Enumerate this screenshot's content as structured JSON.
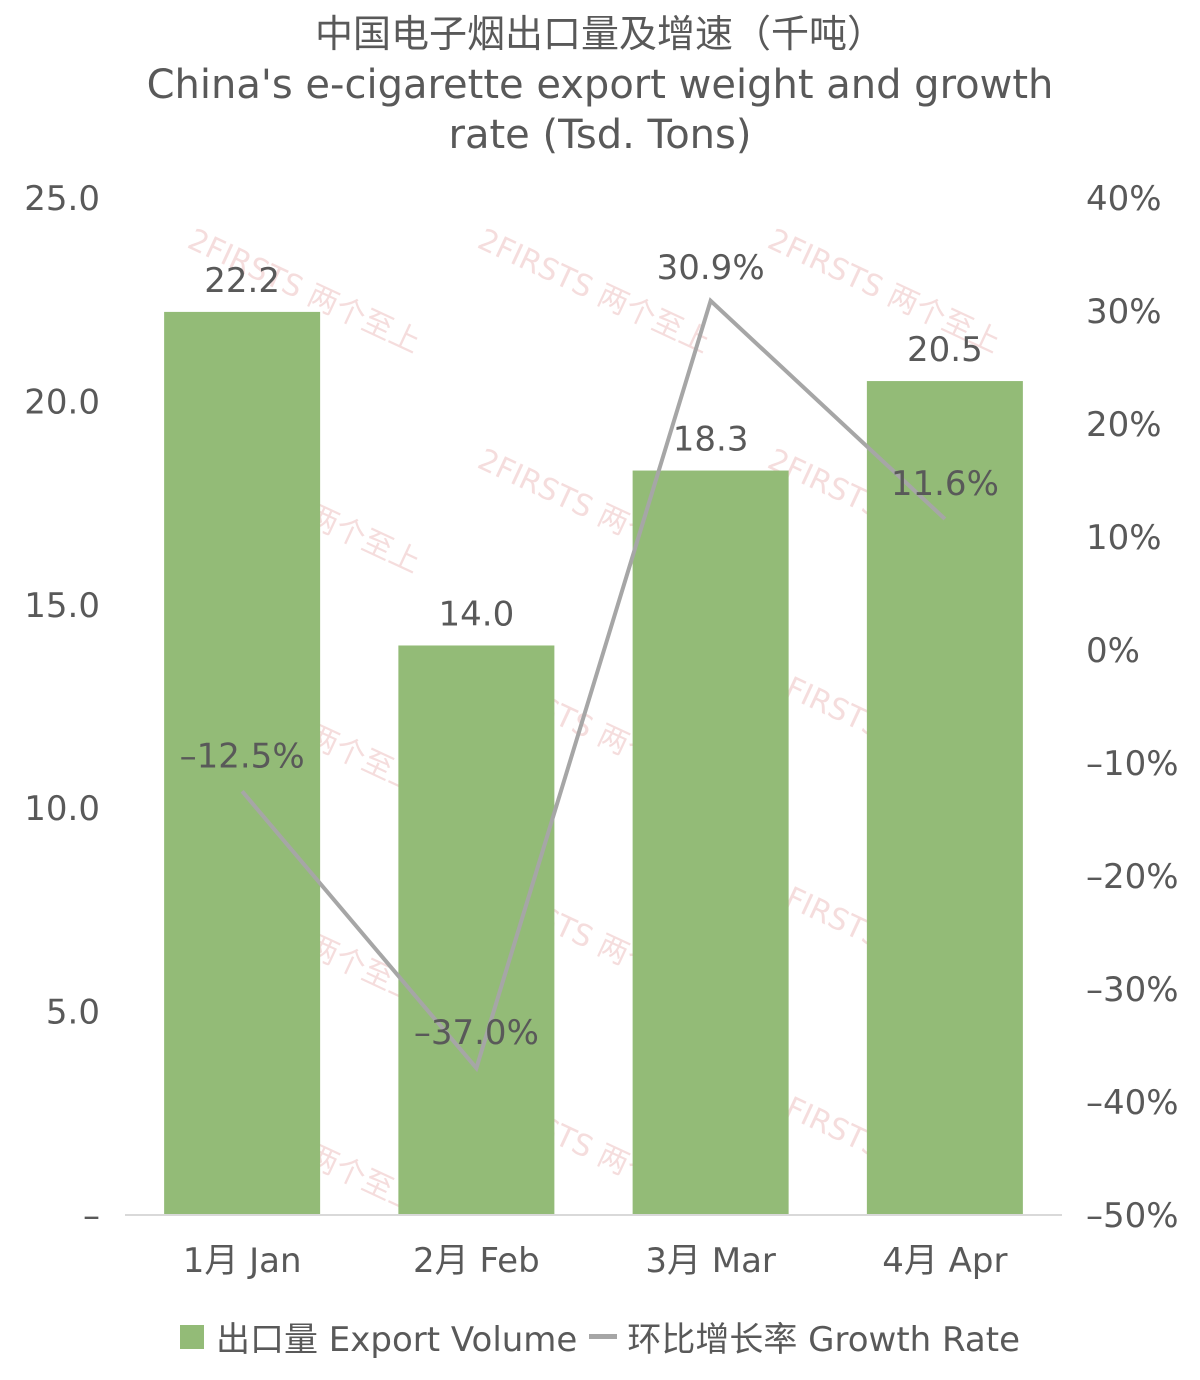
{
  "title": {
    "zh": "中国电子烟出口量及增速（千吨）",
    "en_line1": "China's e-cigarette export weight and growth",
    "en_line2": "rate (Tsd. Tons)"
  },
  "legend": {
    "bar_label": "出口量 Export Volume",
    "line_label": "环比增长率 Growth Rate"
  },
  "colors": {
    "bar": "#93BB77",
    "line": "#A6A6A6",
    "text": "#595959",
    "axis": "#D9D9D9",
    "watermark": "#E8B4B4"
  },
  "watermark_text": "2FIRSTS 两个至上",
  "chart_data": {
    "type": "bar",
    "categories": [
      "1月 Jan",
      "2月 Feb",
      "3月 Mar",
      "4月 Apr"
    ],
    "series": [
      {
        "name": "出口量 Export Volume",
        "type": "bar",
        "axis": "left",
        "values": [
          22.2,
          14.0,
          18.3,
          20.5
        ],
        "labels": [
          "22.2",
          "14.0",
          "18.3",
          "20.5"
        ]
      },
      {
        "name": "环比增长率 Growth Rate",
        "type": "line",
        "axis": "right",
        "values": [
          -12.5,
          -37.0,
          30.9,
          11.6
        ],
        "labels": [
          "–12.5%",
          "–37.0%",
          "30.9%",
          "11.6%"
        ]
      }
    ],
    "left_axis": {
      "ylim": [
        0,
        25
      ],
      "ticks": [
        0,
        5,
        10,
        15,
        20,
        25
      ],
      "tick_labels": [
        "–",
        "5.0",
        "10.0",
        "15.0",
        "20.0",
        "25.0"
      ]
    },
    "right_axis": {
      "ylim": [
        -50,
        40
      ],
      "ticks": [
        -50,
        -40,
        -30,
        -20,
        -10,
        0,
        10,
        20,
        30,
        40
      ],
      "tick_labels": [
        "–50%",
        "–40%",
        "–30%",
        "–20%",
        "–10%",
        "0%",
        "10%",
        "20%",
        "30%",
        "40%"
      ]
    },
    "grid": false,
    "legend_position": "bottom"
  }
}
